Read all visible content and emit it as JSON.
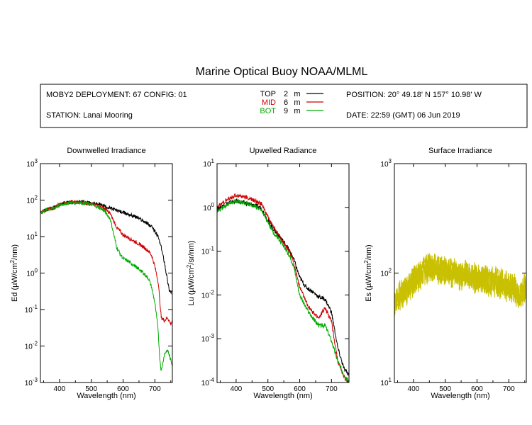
{
  "title": "Marine Optical Buoy NOAA/MLML",
  "info": {
    "deployment": "MOBY2 DEPLOYMENT: 67 CONFIG: 01",
    "station": "STATION: Lanai Mooring",
    "position": "POSITION: 20° 49.18' N   157° 10.98' W",
    "date": "DATE: 22:59 (GMT) 06 Jun 2019",
    "legend": [
      {
        "label": "TOP",
        "depth": "2",
        "unit": "m",
        "color": "#000000"
      },
      {
        "label": "MID",
        "depth": "6",
        "unit": "m",
        "color": "#cc0000"
      },
      {
        "label": "BOT",
        "depth": "9",
        "unit": "m",
        "color": "#00aa00"
      }
    ]
  },
  "chart_data": [
    {
      "type": "line",
      "title": "Downwelled Irradiance",
      "xlabel": "Wavelength (nm)",
      "ylabel": "Ed (µW/cm²/nm)",
      "ylabel_parts": [
        "Ed  (µW/cm",
        "2",
        "/nm)"
      ],
      "xlim": [
        340,
        755
      ],
      "ylim": [
        0.001,
        1000
      ],
      "yscale": "log",
      "xticks": [
        "400",
        "500",
        "600",
        "700"
      ],
      "yticks": [
        {
          "base": "10",
          "exp": "-3"
        },
        {
          "base": "10",
          "exp": "-2"
        },
        {
          "base": "10",
          "exp": "-1"
        },
        {
          "base": "10",
          "exp": "0"
        },
        {
          "base": "10",
          "exp": "1"
        },
        {
          "base": "10",
          "exp": "2"
        },
        {
          "base": "10",
          "exp": "3"
        }
      ],
      "series": [
        {
          "name": "TOP",
          "color": "#000000",
          "noise": 0.05,
          "x": [
            340,
            360,
            380,
            400,
            420,
            440,
            460,
            480,
            500,
            520,
            540,
            560,
            580,
            600,
            620,
            640,
            660,
            680,
            690,
            700,
            710,
            720,
            730,
            740,
            745,
            750,
            755
          ],
          "y": [
            45,
            55,
            60,
            75,
            85,
            90,
            90,
            88,
            82,
            78,
            70,
            60,
            52,
            45,
            40,
            35,
            28,
            22,
            18,
            14,
            10,
            5,
            2,
            0.6,
            0.35,
            0.3,
            0.32
          ]
        },
        {
          "name": "MID",
          "color": "#cc0000",
          "noise": 0.05,
          "x": [
            340,
            360,
            380,
            400,
            420,
            440,
            460,
            480,
            500,
            520,
            540,
            560,
            580,
            600,
            620,
            640,
            660,
            680,
            690,
            700,
            710,
            715,
            720,
            730,
            740,
            750,
            755
          ],
          "y": [
            45,
            55,
            60,
            75,
            85,
            88,
            87,
            84,
            78,
            72,
            60,
            42,
            18,
            11,
            9,
            7,
            5.5,
            4,
            3,
            1.5,
            0.6,
            0.2,
            0.06,
            0.05,
            0.06,
            0.04,
            0.05
          ]
        },
        {
          "name": "BOT",
          "color": "#00aa00",
          "noise": 0.05,
          "x": [
            340,
            360,
            380,
            400,
            420,
            440,
            460,
            480,
            500,
            520,
            540,
            560,
            580,
            600,
            620,
            640,
            660,
            680,
            690,
            700,
            710,
            715,
            720,
            730,
            740,
            750,
            755
          ],
          "y": [
            45,
            55,
            60,
            72,
            82,
            86,
            85,
            82,
            75,
            65,
            52,
            30,
            5,
            2.5,
            2,
            1.5,
            1.1,
            0.7,
            0.4,
            0.15,
            0.03,
            0.005,
            0.002,
            0.006,
            0.008,
            0.004,
            0.003
          ]
        }
      ]
    },
    {
      "type": "line",
      "title": "Upwelled Radiance",
      "xlabel": "Wavelength (nm)",
      "ylabel": "Lu (µW/cm²/sr/nm)",
      "ylabel_parts": [
        "Lu  (µW/cm",
        "2",
        "/sr/nm)"
      ],
      "xlim": [
        340,
        755
      ],
      "ylim": [
        0.0001,
        10
      ],
      "yscale": "log",
      "xticks": [
        "400",
        "500",
        "600",
        "700"
      ],
      "yticks": [
        {
          "base": "10",
          "exp": "-4"
        },
        {
          "base": "10",
          "exp": "-3"
        },
        {
          "base": "10",
          "exp": "-2"
        },
        {
          "base": "10",
          "exp": "-1"
        },
        {
          "base": "10",
          "exp": "0"
        },
        {
          "base": "10",
          "exp": "1"
        }
      ],
      "series": [
        {
          "name": "TOP",
          "color": "#000000",
          "noise": 0.05,
          "x": [
            340,
            360,
            380,
            400,
            420,
            440,
            460,
            480,
            500,
            520,
            540,
            560,
            580,
            600,
            620,
            640,
            660,
            680,
            700,
            720,
            740,
            755
          ],
          "y": [
            0.9,
            1.1,
            1.3,
            1.4,
            1.3,
            1.2,
            1.1,
            0.95,
            0.5,
            0.3,
            0.2,
            0.13,
            0.07,
            0.025,
            0.015,
            0.012,
            0.009,
            0.008,
            0.004,
            0.0006,
            0.0002,
            0.00015
          ]
        },
        {
          "name": "MID",
          "color": "#cc0000",
          "noise": 0.05,
          "x": [
            340,
            360,
            380,
            400,
            420,
            440,
            460,
            480,
            500,
            520,
            540,
            560,
            580,
            600,
            620,
            640,
            660,
            680,
            700,
            720,
            740,
            755
          ],
          "y": [
            1.0,
            1.3,
            1.6,
            1.9,
            1.8,
            1.6,
            1.4,
            1.2,
            0.6,
            0.33,
            0.2,
            0.12,
            0.06,
            0.015,
            0.007,
            0.004,
            0.003,
            0.005,
            0.0025,
            0.0003,
            0.00013,
            0.0001
          ]
        },
        {
          "name": "BOT",
          "color": "#00aa00",
          "noise": 0.05,
          "x": [
            340,
            360,
            380,
            400,
            420,
            440,
            460,
            480,
            500,
            520,
            540,
            560,
            580,
            600,
            620,
            640,
            660,
            680,
            700,
            720,
            740,
            755
          ],
          "y": [
            0.8,
            1.0,
            1.2,
            1.4,
            1.3,
            1.2,
            1.05,
            0.9,
            0.45,
            0.25,
            0.16,
            0.1,
            0.05,
            0.01,
            0.005,
            0.003,
            0.002,
            0.002,
            0.0009,
            0.0003,
            0.00015,
            0.0001
          ]
        }
      ]
    },
    {
      "type": "line",
      "title": "Surface Irradiance",
      "xlabel": "Wavelength (nm)",
      "ylabel": "Es (µW/cm²/nm)",
      "ylabel_parts": [
        "Es  (µW/cm",
        "2",
        "/nm)"
      ],
      "xlim": [
        340,
        755
      ],
      "ylim": [
        10,
        1000
      ],
      "yscale": "log",
      "xticks": [
        "400",
        "500",
        "600",
        "700"
      ],
      "yticks": [
        {
          "base": "10",
          "exp": "1"
        },
        {
          "base": "10",
          "exp": "2"
        },
        {
          "base": "10",
          "exp": "3"
        }
      ],
      "series": [
        {
          "color": "#c8c000",
          "noise": 0.12,
          "x": [
            340,
            350,
            360,
            380,
            400,
            420,
            440,
            460,
            480,
            500,
            520,
            540,
            560,
            580,
            600,
            620,
            640,
            660,
            680,
            700,
            720,
            730,
            740,
            750,
            755
          ],
          "y": [
            50,
            58,
            62,
            70,
            82,
            95,
            108,
            112,
            108,
            104,
            100,
            97,
            95,
            92,
            88,
            86,
            84,
            82,
            78,
            74,
            70,
            62,
            64,
            72,
            76
          ]
        },
        {
          "color": "#c8c000",
          "noise": 0.12,
          "x": [
            340,
            350,
            360,
            380,
            400,
            420,
            440,
            460,
            480,
            500,
            520,
            540,
            560,
            580,
            600,
            620,
            640,
            660,
            680,
            700,
            720,
            730,
            740,
            750,
            755
          ],
          "y": [
            54,
            62,
            66,
            75,
            88,
            102,
            115,
            120,
            116,
            111,
            107,
            104,
            101,
            98,
            94,
            92,
            90,
            88,
            84,
            80,
            75,
            66,
            68,
            76,
            80
          ]
        },
        {
          "color": "#c8c000",
          "noise": 0.12,
          "x": [
            340,
            350,
            360,
            380,
            400,
            420,
            440,
            460,
            480,
            500,
            520,
            540,
            560,
            580,
            600,
            620,
            640,
            660,
            680,
            700,
            720,
            730,
            740,
            750,
            755
          ],
          "y": [
            47,
            55,
            59,
            66,
            77,
            90,
            102,
            106,
            103,
            99,
            95,
            92,
            90,
            87,
            83,
            81,
            79,
            77,
            73,
            69,
            66,
            58,
            60,
            68,
            72
          ]
        },
        {
          "color": "#c8c000",
          "noise": 0.12,
          "x": [
            340,
            350,
            360,
            380,
            400,
            420,
            440,
            460,
            480,
            500,
            520,
            540,
            560,
            580,
            600,
            620,
            640,
            660,
            680,
            700,
            720,
            730,
            740,
            750,
            755
          ],
          "y": [
            52,
            60,
            64,
            73,
            85,
            98,
            111,
            116,
            112,
            107,
            103,
            100,
            98,
            95,
            91,
            89,
            87,
            85,
            81,
            77,
            73,
            64,
            66,
            74,
            78
          ]
        }
      ]
    }
  ]
}
